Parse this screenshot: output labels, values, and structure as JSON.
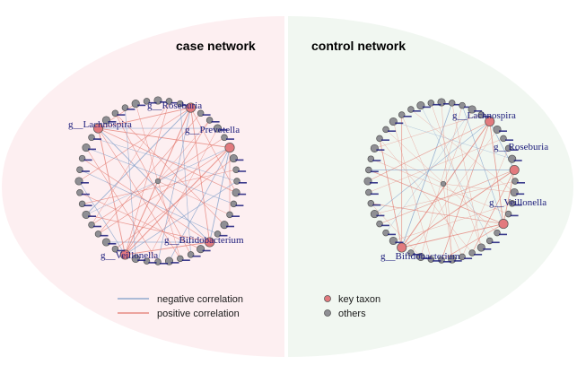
{
  "panels": {
    "case": {
      "title": "case network",
      "background": "#fdeff1",
      "key_labels": [
        "g__Roseburia",
        "g__Lachnospira",
        "g__Prevotella",
        "g__Bifidobacterium",
        "g__Veillonella"
      ]
    },
    "control": {
      "title": "control network",
      "background": "#f1f7f1",
      "key_labels": [
        "g__Lachnospira",
        "g__Roseburia",
        "g__Veillonella",
        "g__Bifidobacterium"
      ]
    }
  },
  "legend": {
    "edges": [
      {
        "label": "negative correlation",
        "color": "#7c9cc8"
      },
      {
        "label": "positive correlation",
        "color": "#e3786e"
      }
    ],
    "nodes": [
      {
        "label": "key taxon",
        "color": "#e27a7e"
      },
      {
        "label": "others",
        "color": "#8f8f94"
      }
    ]
  },
  "colors": {
    "negative_edge": "#7c9cc8",
    "positive_edge": "#e3786e",
    "key_node": "#e27a7e",
    "other_node": "#8f8f94",
    "label_text": "#1a1a7a"
  }
}
